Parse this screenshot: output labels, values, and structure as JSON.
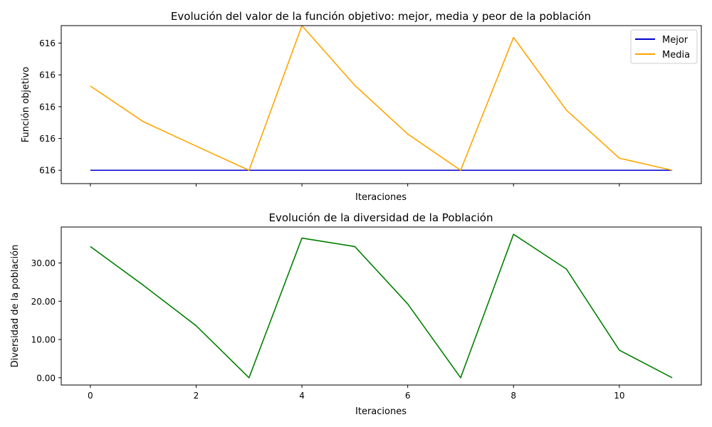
{
  "chart_data": [
    {
      "type": "line",
      "title": "Evolución del valor de la función objetivo: mejor, media y peor de la población",
      "xlabel": "Iteraciones",
      "ylabel": "Función objetivo",
      "x": [
        0,
        1,
        2,
        3,
        4,
        5,
        6,
        7,
        8,
        9,
        10,
        11
      ],
      "xlim": [
        -0.55,
        11.55
      ],
      "xticks": [
        0,
        2,
        4,
        6,
        8,
        10
      ],
      "xtick_labels_visible": false,
      "ylim": [
        -0.0042,
        0.0455
      ],
      "y_offset_note": "616",
      "yticks": [
        0,
        0.01,
        0.02,
        0.03,
        0.04
      ],
      "ytick_labels": [
        "616",
        "616",
        "616",
        "616",
        "616"
      ],
      "legend_position": "top-right",
      "series": [
        {
          "name": "Mejor",
          "color": "#0000cc",
          "values": [
            0,
            0,
            0,
            0,
            0,
            0,
            0,
            0,
            0,
            0,
            0,
            0
          ]
        },
        {
          "name": "Media",
          "color": "#ffa500",
          "values": [
            0.0265,
            0.0153,
            0.0076,
            0.0,
            0.0455,
            0.0267,
            0.0114,
            0.0,
            0.0418,
            0.0189,
            0.0038,
            0.0
          ]
        }
      ]
    },
    {
      "type": "line",
      "title": "Evolución de la diversidad de la Población",
      "xlabel": "Iteraciones",
      "ylabel": "Diversidad de la población",
      "x": [
        0,
        1,
        2,
        3,
        4,
        5,
        6,
        7,
        8,
        9,
        10,
        11
      ],
      "xlim": [
        -0.55,
        11.55
      ],
      "xticks": [
        0,
        2,
        4,
        6,
        8,
        10
      ],
      "xtick_labels": [
        "0",
        "2",
        "4",
        "6",
        "8",
        "10"
      ],
      "ylim": [
        -1.9,
        39.4
      ],
      "yticks": [
        0,
        10,
        20,
        30
      ],
      "ytick_labels": [
        "0.00",
        "10.00",
        "20.00",
        "30.00"
      ],
      "series": [
        {
          "name": "",
          "color": "#008000",
          "values": [
            34.3,
            24.2,
            13.6,
            0.0,
            36.5,
            34.3,
            19.3,
            0.0,
            37.5,
            28.4,
            7.2,
            0.0
          ]
        }
      ]
    }
  ]
}
